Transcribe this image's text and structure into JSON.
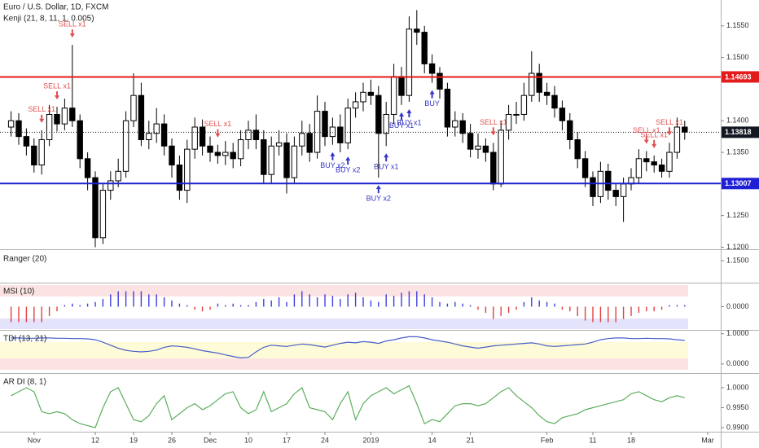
{
  "chart_data": [
    {
      "type": "candlestick",
      "title": "Euro / U.S. Dollar, 1D, FXCM",
      "subtitle": "Kenji (21, 8, 11, 1, 0.005)",
      "categories": [
        null,
        null,
        null,
        "Nov",
        null,
        null,
        null,
        null,
        null,
        null,
        null,
        "12",
        null,
        null,
        null,
        null,
        "19",
        null,
        null,
        null,
        null,
        "26",
        null,
        null,
        null,
        null,
        "Dec",
        null,
        null,
        null,
        null,
        "10",
        null,
        null,
        null,
        null,
        "17",
        null,
        null,
        null,
        null,
        "24",
        null,
        null,
        null,
        null,
        null,
        "2019",
        null,
        null,
        null,
        null,
        null,
        null,
        null,
        "14",
        null,
        null,
        null,
        null,
        "21",
        null,
        null,
        null,
        null,
        null,
        null,
        null,
        null,
        null,
        "Feb",
        null,
        null,
        null,
        null,
        null,
        "11",
        null,
        null,
        null,
        null,
        "18",
        null,
        null,
        null,
        null,
        null,
        null,
        null,
        null,
        null,
        "Mar"
      ],
      "open": [
        1.139,
        1.14,
        1.1375,
        1.136,
        1.133,
        1.137,
        1.141,
        1.1395,
        1.142,
        1.14,
        1.134,
        1.131,
        1.1215,
        1.129,
        1.1305,
        1.132,
        1.14,
        1.144,
        1.137,
        1.138,
        1.1395,
        1.136,
        1.133,
        1.129,
        1.1355,
        1.139,
        1.136,
        1.135,
        1.1345,
        1.135,
        1.134,
        1.137,
        1.1385,
        1.137,
        1.1315,
        1.136,
        1.1365,
        1.131,
        1.136,
        1.138,
        1.135,
        1.1415,
        1.1375,
        1.139,
        1.1365,
        1.142,
        1.143,
        1.1445,
        1.144,
        1.138,
        1.141,
        1.147,
        1.144,
        1.1545,
        1.154,
        1.149,
        1.1475,
        1.145,
        1.139,
        1.14,
        1.138,
        1.1355,
        1.136,
        1.135,
        1.13,
        1.1385,
        1.141,
        1.141,
        1.144,
        1.1475,
        1.1445,
        1.144,
        1.142,
        1.14,
        1.137,
        1.134,
        1.131,
        1.128,
        1.132,
        1.129,
        1.128,
        1.13,
        1.131,
        1.134,
        1.1335,
        1.133,
        1.132,
        1.135,
        1.139,
        null,
        null,
        null
      ],
      "high": [
        1.1415,
        1.1412,
        1.1388,
        1.1372,
        1.1385,
        1.1425,
        1.1422,
        1.1435,
        1.152,
        1.141,
        1.135,
        1.132,
        1.13,
        1.132,
        1.134,
        1.1415,
        1.1475,
        1.146,
        1.14,
        1.142,
        1.141,
        1.1372,
        1.1345,
        1.137,
        1.1405,
        1.1402,
        1.1375,
        1.1362,
        1.1368,
        1.1365,
        1.1385,
        1.14,
        1.141,
        1.1385,
        1.1375,
        1.1385,
        1.138,
        1.1375,
        1.14,
        1.1395,
        1.144,
        1.143,
        1.1405,
        1.141,
        1.1435,
        1.1445,
        1.146,
        1.1465,
        1.1455,
        1.143,
        1.149,
        1.1485,
        1.1565,
        1.1575,
        1.155,
        1.1505,
        1.1485,
        1.146,
        1.1415,
        1.1412,
        1.1395,
        1.138,
        1.1372,
        1.1365,
        1.14,
        1.1425,
        1.143,
        1.146,
        1.151,
        1.149,
        1.146,
        1.1455,
        1.1432,
        1.1412,
        1.1382,
        1.1352,
        1.132,
        1.1335,
        1.1332,
        1.13,
        1.131,
        1.1325,
        1.1355,
        1.1352,
        1.1345,
        1.134,
        1.1365,
        1.1405,
        1.14,
        null,
        null,
        null
      ],
      "low": [
        1.1375,
        1.1362,
        1.1345,
        1.1318,
        1.1315,
        1.136,
        1.1383,
        1.1385,
        1.139,
        1.1325,
        1.129,
        1.12,
        1.1205,
        1.1275,
        1.1295,
        1.131,
        1.139,
        1.136,
        1.1355,
        1.1365,
        1.1345,
        1.131,
        1.1275,
        1.127,
        1.134,
        1.1345,
        1.1335,
        1.1332,
        1.133,
        1.1325,
        1.1328,
        1.1355,
        1.1355,
        1.13,
        1.13,
        1.1345,
        1.1285,
        1.13,
        1.1345,
        1.1335,
        1.134,
        1.136,
        1.1362,
        1.135,
        1.1355,
        1.1405,
        1.1415,
        1.1425,
        1.131,
        1.136,
        1.1395,
        1.1425,
        1.143,
        1.152,
        1.1475,
        1.146,
        1.1435,
        1.1375,
        1.1375,
        1.1365,
        1.1342,
        1.134,
        1.1335,
        1.129,
        1.1295,
        1.137,
        1.1395,
        1.14,
        1.143,
        1.143,
        1.1425,
        1.1405,
        1.1385,
        1.1355,
        1.1325,
        1.1295,
        1.1265,
        1.127,
        1.1275,
        1.1265,
        1.124,
        1.129,
        1.13,
        1.132,
        1.1318,
        1.131,
        1.131,
        1.134,
        1.137,
        null,
        null,
        null
      ],
      "close": [
        1.14,
        1.1375,
        1.136,
        1.133,
        1.137,
        1.141,
        1.1395,
        1.142,
        1.14,
        1.134,
        1.131,
        1.1215,
        1.129,
        1.1305,
        1.132,
        1.14,
        1.144,
        1.137,
        1.138,
        1.1395,
        1.136,
        1.133,
        1.129,
        1.1355,
        1.139,
        1.136,
        1.135,
        1.1345,
        1.135,
        1.134,
        1.137,
        1.1385,
        1.137,
        1.1315,
        1.136,
        1.1365,
        1.131,
        1.136,
        1.138,
        1.135,
        1.1415,
        1.1375,
        1.139,
        1.1365,
        1.142,
        1.143,
        1.1445,
        1.144,
        1.138,
        1.141,
        1.147,
        1.144,
        1.1545,
        1.154,
        1.149,
        1.1475,
        1.145,
        1.139,
        1.14,
        1.138,
        1.1355,
        1.136,
        1.135,
        1.13,
        1.1385,
        1.141,
        1.141,
        1.144,
        1.1475,
        1.1445,
        1.144,
        1.142,
        1.14,
        1.137,
        1.134,
        1.131,
        1.128,
        1.132,
        1.129,
        1.128,
        1.13,
        1.131,
        1.134,
        1.1335,
        1.133,
        1.132,
        1.135,
        1.139,
        1.1382,
        null,
        null,
        null
      ],
      "ylim": [
        1.1198,
        1.1591
      ],
      "yticks": [
        {
          "value": 1.155,
          "label": "1.1550"
        },
        {
          "value": 1.15,
          "label": "1.1500"
        },
        {
          "value": 1.14,
          "label": "1.1400"
        },
        {
          "value": 1.135,
          "label": "1.1350"
        },
        {
          "value": 1.125,
          "label": "1.1250"
        },
        {
          "value": 1.12,
          "label": "1.1200"
        }
      ],
      "hlines": [
        {
          "value": 1.14693,
          "color": "#e31b1b",
          "style": "solid"
        },
        {
          "value": 1.13818,
          "color": "#131722",
          "style": "dotted"
        },
        {
          "value": 1.13007,
          "color": "#1f1fd6",
          "style": "solid"
        }
      ],
      "annotations": [
        {
          "text": "SELL x1",
          "index": 8,
          "kind": "sell"
        },
        {
          "text": "SELL x1",
          "index": 4,
          "kind": "sell"
        },
        {
          "text": "SELL x1",
          "index": 6,
          "kind": "sell"
        },
        {
          "text": "SELL x1",
          "index": 27,
          "kind": "sell"
        },
        {
          "text": "BUY x2",
          "index": 42,
          "kind": "buy"
        },
        {
          "text": "BUY x2",
          "index": 44,
          "kind": "buy"
        },
        {
          "text": "BUY x2",
          "index": 48,
          "kind": "buy"
        },
        {
          "text": "BUY x1",
          "index": 49,
          "kind": "buy"
        },
        {
          "text": "BUY x1",
          "index": 51,
          "kind": "buy"
        },
        {
          "text": "BUY x1",
          "index": 52,
          "kind": "buy"
        },
        {
          "text": "BUY",
          "index": 55,
          "kind": "buy"
        },
        {
          "text": "SELL x1",
          "index": 63,
          "kind": "sell"
        },
        {
          "text": "SELL x1",
          "index": 83,
          "kind": "sell"
        },
        {
          "text": "SELL x1",
          "index": 84,
          "kind": "sell"
        },
        {
          "text": "SELL x1",
          "index": 86,
          "kind": "sell"
        }
      ],
      "colors": {
        "sell": "#e05050",
        "buy": "#3535c8",
        "up": "#ffffff",
        "down": "#000000",
        "outline": "#000000"
      }
    },
    {
      "type": "line",
      "title": "Ranger (20)",
      "ylim": [
        1.132,
        1.158
      ],
      "yticks": [
        {
          "value": 1.15,
          "label": "1.1500"
        }
      ]
    },
    {
      "type": "bar",
      "title": "MSI (10)",
      "ylim": [
        -1.5,
        1.5
      ],
      "yticks": [
        {
          "value": 0,
          "label": "0.0000"
        }
      ],
      "colors": {
        "up": "#3f3fdc",
        "down": "#e04040"
      },
      "values": [
        -1,
        -1,
        -1,
        -1,
        -1,
        -0.6,
        -0.3,
        0.1,
        0.2,
        0.1,
        0.2,
        0.3,
        0.5,
        0.8,
        1,
        1,
        1,
        1,
        0.8,
        0.8,
        0.6,
        0.4,
        0.2,
        0.1,
        -0.2,
        -0.3,
        -0.2,
        0.2,
        0.1,
        0.2,
        0.1,
        0.1,
        0.3,
        0.5,
        0.4,
        0.6,
        0.3,
        0.8,
        1,
        0.8,
        0.6,
        0.8,
        0.7,
        0.5,
        0.8,
        0.9,
        0.6,
        0.4,
        0.3,
        0.8,
        0.7,
        0.9,
        1,
        1,
        0.8,
        0.6,
        0.3,
        0.2,
        0.3,
        0.2,
        0.1,
        -0.2,
        -0.4,
        -0.8,
        -0.6,
        -0.4,
        -0.2,
        0.3,
        0.6,
        0.4,
        0.3,
        0.2,
        -0.2,
        -0.3,
        -0.6,
        -0.9,
        -1,
        -1,
        -1,
        -1,
        -0.8,
        -0.6,
        -0.4,
        -0.3,
        -0.3,
        -0.2,
        0.1,
        0.1,
        0.1,
        null,
        null,
        null
      ]
    },
    {
      "type": "line",
      "title": "TDI (13, 21)",
      "ylim": [
        -0.3,
        1.1
      ],
      "yticks": [
        {
          "value": 1,
          "label": "1.0000"
        },
        {
          "value": 0,
          "label": "0.0000"
        }
      ],
      "series": [
        {
          "color": "#4a5fc8",
          "values": [
            0.86,
            0.86,
            0.85,
            0.85,
            0.86,
            0.86,
            0.85,
            0.85,
            0.84,
            0.84,
            0.83,
            0.8,
            0.72,
            0.62,
            0.52,
            0.45,
            0.42,
            0.4,
            0.42,
            0.46,
            0.55,
            0.6,
            0.58,
            0.55,
            0.5,
            0.44,
            0.4,
            0.36,
            0.3,
            0.25,
            0.2,
            0.22,
            0.4,
            0.55,
            0.62,
            0.6,
            0.58,
            0.62,
            0.66,
            0.64,
            0.6,
            0.56,
            0.62,
            0.68,
            0.72,
            0.7,
            0.74,
            0.72,
            0.68,
            0.76,
            0.8,
            0.86,
            0.9,
            0.9,
            0.86,
            0.8,
            0.76,
            0.72,
            0.66,
            0.6,
            0.56,
            0.52,
            0.56,
            0.6,
            0.62,
            0.64,
            0.66,
            0.68,
            0.7,
            0.66,
            0.6,
            0.58,
            0.6,
            0.62,
            0.64,
            0.66,
            0.72,
            0.8,
            0.84,
            0.86,
            0.86,
            0.84,
            0.84,
            0.85,
            0.84,
            0.84,
            0.83,
            0.8,
            0.78,
            null,
            null,
            null
          ]
        }
      ]
    },
    {
      "type": "line",
      "title": "AR DI (8, 1)",
      "ylim": [
        0.98898,
        1.00347
      ],
      "yticks": [
        {
          "value": 1,
          "label": "1.0000"
        },
        {
          "value": 0.995,
          "label": "0.9950"
        },
        {
          "value": 0.99,
          "label": "0.9900"
        }
      ],
      "series": [
        {
          "color": "#5cae5c",
          "values": [
            0.998,
            0.999,
            1.0,
            0.999,
            0.994,
            0.9935,
            0.994,
            0.9935,
            0.992,
            0.991,
            0.9905,
            0.99,
            0.995,
            0.999,
            1.0,
            0.996,
            0.992,
            0.9915,
            0.993,
            0.996,
            0.998,
            0.992,
            0.9935,
            0.995,
            0.996,
            0.9945,
            0.9955,
            0.997,
            0.9985,
            0.999,
            0.995,
            0.9935,
            0.9945,
            0.999,
            0.994,
            0.995,
            0.996,
            0.9985,
            1.0,
            0.995,
            0.9945,
            0.994,
            0.992,
            0.996,
            0.999,
            0.992,
            0.996,
            0.998,
            0.999,
            1.0,
            0.9985,
            0.9995,
            1.0005,
            0.996,
            0.991,
            0.992,
            0.9915,
            0.9935,
            0.9955,
            0.996,
            0.996,
            0.9955,
            0.996,
            0.9975,
            0.999,
            1.0,
            0.998,
            0.9965,
            0.995,
            0.993,
            0.9915,
            0.991,
            0.9925,
            0.993,
            0.9935,
            0.9945,
            0.995,
            0.9955,
            0.996,
            0.9965,
            0.997,
            0.9985,
            0.999,
            0.998,
            0.997,
            0.9965,
            0.9975,
            0.998,
            0.9975,
            null,
            null,
            null
          ]
        }
      ]
    }
  ]
}
